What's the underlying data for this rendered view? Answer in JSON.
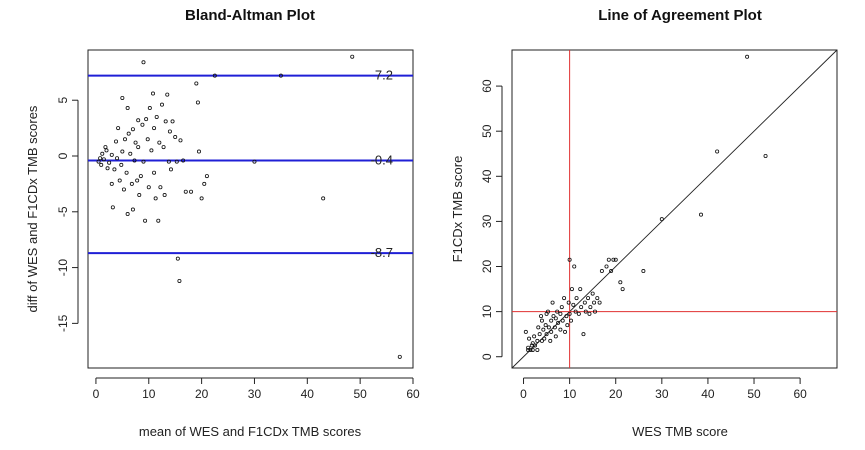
{
  "chart_data": [
    {
      "type": "scatter",
      "title": "Bland-Altman Plot",
      "xlabel": "mean of WES and F1CDx TMB scores",
      "ylabel": "diff of WES and F1CDx TMB scores",
      "xlim": [
        -1.5,
        60
      ],
      "ylim": [
        -19,
        9.5
      ],
      "xticks": [
        0,
        10,
        20,
        30,
        40,
        50,
        60
      ],
      "yticks": [
        -15,
        -10,
        -5,
        0,
        5
      ],
      "hlines": [
        {
          "value": 7.2,
          "label": "7.2",
          "color": "#1f1fd6"
        },
        {
          "value": -0.4,
          "label": "-0.4",
          "color": "#1f1fd6"
        },
        {
          "value": -8.7,
          "label": "-8.7",
          "color": "#1f1fd6"
        }
      ],
      "points": [
        [
          0.5,
          -0.5
        ],
        [
          0.8,
          -0.2
        ],
        [
          1,
          -0.8
        ],
        [
          1.2,
          0.2
        ],
        [
          1.5,
          -0.3
        ],
        [
          1.8,
          0.8
        ],
        [
          2,
          0.5
        ],
        [
          2.2,
          -1.1
        ],
        [
          2.5,
          -0.6
        ],
        [
          3,
          0.1
        ],
        [
          3,
          -2.5
        ],
        [
          3.2,
          -4.6
        ],
        [
          3.5,
          -1.2
        ],
        [
          3.8,
          1.3
        ],
        [
          4,
          -0.2
        ],
        [
          4.2,
          2.5
        ],
        [
          4.5,
          -2.2
        ],
        [
          4.8,
          -0.8
        ],
        [
          5,
          0.4
        ],
        [
          5,
          5.2
        ],
        [
          5.3,
          -3
        ],
        [
          5.5,
          1.5
        ],
        [
          5.8,
          -1.5
        ],
        [
          6,
          4.3
        ],
        [
          6,
          -5.2
        ],
        [
          6.2,
          2
        ],
        [
          6.5,
          0.2
        ],
        [
          6.8,
          -2.5
        ],
        [
          7,
          2.4
        ],
        [
          7,
          -4.8
        ],
        [
          7.3,
          -0.4
        ],
        [
          7.5,
          1.2
        ],
        [
          7.8,
          -2.2
        ],
        [
          8,
          3.2
        ],
        [
          8,
          0.8
        ],
        [
          8.2,
          -3.5
        ],
        [
          8.5,
          -1.8
        ],
        [
          8.8,
          2.8
        ],
        [
          9,
          -0.5
        ],
        [
          9,
          8.4
        ],
        [
          9.3,
          -5.8
        ],
        [
          9.5,
          3.3
        ],
        [
          9.8,
          1.5
        ],
        [
          10,
          -2.8
        ],
        [
          10.2,
          4.3
        ],
        [
          10.5,
          0.5
        ],
        [
          10.8,
          5.6
        ],
        [
          11,
          -1.5
        ],
        [
          11,
          2.5
        ],
        [
          11.3,
          -3.8
        ],
        [
          11.5,
          3.5
        ],
        [
          11.8,
          -5.8
        ],
        [
          12,
          1.2
        ],
        [
          12.2,
          -2.8
        ],
        [
          12.5,
          4.6
        ],
        [
          12.8,
          0.8
        ],
        [
          13,
          -3.5
        ],
        [
          13.2,
          3.1
        ],
        [
          13.5,
          5.5
        ],
        [
          13.8,
          -0.5
        ],
        [
          14,
          2.2
        ],
        [
          14.2,
          -1.2
        ],
        [
          14.5,
          3.1
        ],
        [
          15,
          1.7
        ],
        [
          15.3,
          -0.5
        ],
        [
          15.5,
          -9.2
        ],
        [
          15.8,
          -11.2
        ],
        [
          16,
          1.4
        ],
        [
          16.5,
          -0.4
        ],
        [
          17,
          -3.2
        ],
        [
          18,
          -3.2
        ],
        [
          19,
          6.5
        ],
        [
          19.3,
          4.8
        ],
        [
          19.5,
          0.4
        ],
        [
          20,
          -3.8
        ],
        [
          20.5,
          -2.5
        ],
        [
          21,
          -1.8
        ],
        [
          22.5,
          7.2
        ],
        [
          30,
          -0.5
        ],
        [
          35,
          7.2
        ],
        [
          43,
          -3.8
        ],
        [
          48.5,
          8.9
        ],
        [
          57.5,
          -18
        ]
      ]
    },
    {
      "type": "scatter",
      "title": "Line of Agreement Plot",
      "xlabel": "WES TMB score",
      "ylabel": "F1CDx TMB score",
      "xlim": [
        -2.5,
        68
      ],
      "ylim": [
        -2.5,
        68
      ],
      "xticks": [
        0,
        10,
        20,
        30,
        40,
        50,
        60
      ],
      "yticks": [
        0,
        10,
        20,
        30,
        40,
        50,
        60
      ],
      "diagonal": {
        "from": 0,
        "to": 68,
        "color": "#222222"
      },
      "vline": {
        "value": 10,
        "color": "#e03030"
      },
      "hline": {
        "value": 10,
        "color": "#e03030"
      },
      "points": [
        [
          0.5,
          5.5
        ],
        [
          1,
          2
        ],
        [
          1,
          1.5
        ],
        [
          1.2,
          4
        ],
        [
          1.5,
          1.5
        ],
        [
          1.8,
          2.5
        ],
        [
          2,
          3
        ],
        [
          2,
          1.5
        ],
        [
          2.3,
          4.5
        ],
        [
          2.5,
          2.5
        ],
        [
          3,
          3.5
        ],
        [
          3,
          1.5
        ],
        [
          3.2,
          6.5
        ],
        [
          3.5,
          5
        ],
        [
          3.8,
          9
        ],
        [
          4,
          3.5
        ],
        [
          4,
          8
        ],
        [
          4.3,
          6
        ],
        [
          4.5,
          4
        ],
        [
          4.8,
          7
        ],
        [
          5,
          5
        ],
        [
          5,
          9.5
        ],
        [
          5.3,
          10
        ],
        [
          5.5,
          6.5
        ],
        [
          5.8,
          3.5
        ],
        [
          6,
          8
        ],
        [
          6,
          5.5
        ],
        [
          6.3,
          12
        ],
        [
          6.5,
          9
        ],
        [
          6.8,
          6.5
        ],
        [
          7,
          8.5
        ],
        [
          7,
          4.5
        ],
        [
          7.3,
          10
        ],
        [
          7.5,
          7.5
        ],
        [
          8,
          6
        ],
        [
          8,
          9.5
        ],
        [
          8.3,
          11
        ],
        [
          8.5,
          8
        ],
        [
          8.8,
          13
        ],
        [
          9,
          5.5
        ],
        [
          9.3,
          9
        ],
        [
          9.5,
          7
        ],
        [
          9.8,
          12
        ],
        [
          10,
          9.5
        ],
        [
          10,
          21.5
        ],
        [
          10.3,
          8
        ],
        [
          10.5,
          15
        ],
        [
          10.8,
          11.5
        ],
        [
          11,
          20
        ],
        [
          11.3,
          10
        ],
        [
          11.5,
          13
        ],
        [
          12,
          9.5
        ],
        [
          12.3,
          15
        ],
        [
          12.5,
          11
        ],
        [
          13,
          5
        ],
        [
          13.3,
          12
        ],
        [
          13.5,
          10
        ],
        [
          14,
          13
        ],
        [
          14.3,
          9.5
        ],
        [
          14.5,
          11
        ],
        [
          15,
          14
        ],
        [
          15.3,
          12
        ],
        [
          15.5,
          10
        ],
        [
          16,
          13
        ],
        [
          16.5,
          12
        ],
        [
          17,
          19
        ],
        [
          18,
          20
        ],
        [
          18.5,
          21.5
        ],
        [
          19,
          19
        ],
        [
          19.5,
          21.5
        ],
        [
          20,
          21.5
        ],
        [
          21,
          16.5
        ],
        [
          21.5,
          15
        ],
        [
          26,
          19
        ],
        [
          30,
          30.5
        ],
        [
          38.5,
          31.5
        ],
        [
          42,
          45.5
        ],
        [
          48.5,
          66.5
        ],
        [
          52.5,
          44.5
        ]
      ]
    }
  ]
}
